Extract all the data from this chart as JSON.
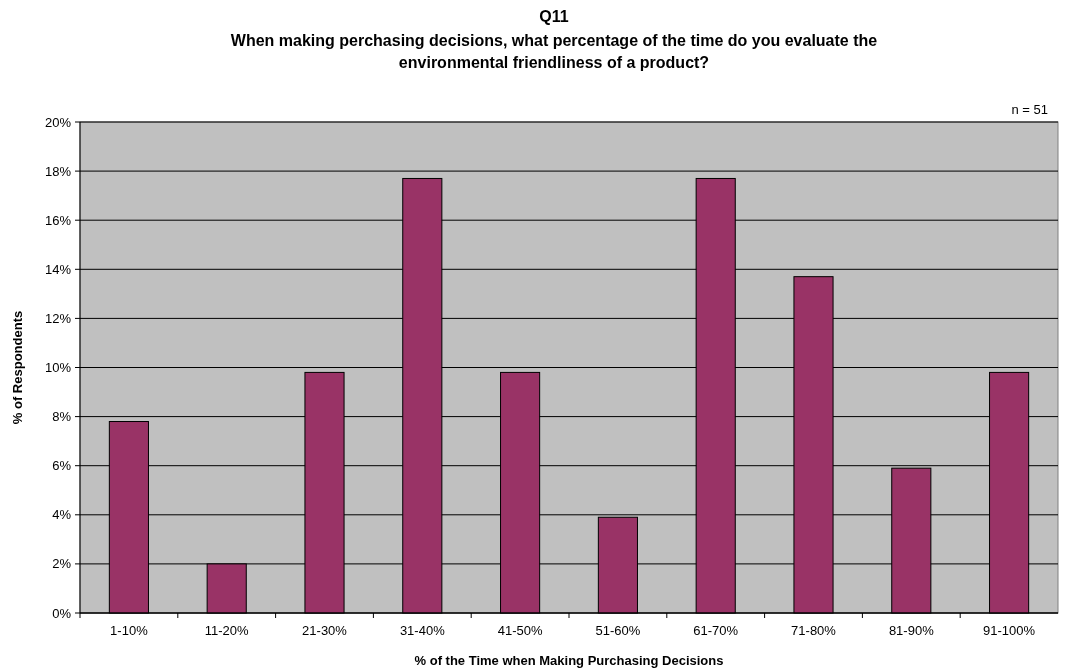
{
  "chart_data": {
    "type": "bar",
    "title": "Q11",
    "subtitle": "When making perchasing decisions, what percentage of the time do you evaluate the environmental friendliness of a product?",
    "xlabel": "% of the Time when Making Purchasing Decisions",
    "ylabel": "% of Respondents",
    "annotations": [
      "n = 51"
    ],
    "categories": [
      "1-10%",
      "11-20%",
      "21-30%",
      "31-40%",
      "41-50%",
      "51-60%",
      "61-70%",
      "71-80%",
      "81-90%",
      "91-100%"
    ],
    "values": [
      7.8,
      2.0,
      9.8,
      17.7,
      9.8,
      3.9,
      17.7,
      13.7,
      5.9,
      9.8
    ],
    "color": "#993366",
    "ylim": [
      0,
      20
    ],
    "yticks": [
      {
        "value": 0,
        "label": "0%"
      },
      {
        "value": 2,
        "label": "2%"
      },
      {
        "value": 4,
        "label": "4%"
      },
      {
        "value": 6,
        "label": "6%"
      },
      {
        "value": 8,
        "label": "8%"
      },
      {
        "value": 10,
        "label": "10%"
      },
      {
        "value": 12,
        "label": "12%"
      },
      {
        "value": 14,
        "label": "14%"
      },
      {
        "value": 16,
        "label": "16%"
      },
      {
        "value": 18,
        "label": "18%"
      },
      {
        "value": 20,
        "label": "20%"
      }
    ],
    "grid": "y"
  }
}
